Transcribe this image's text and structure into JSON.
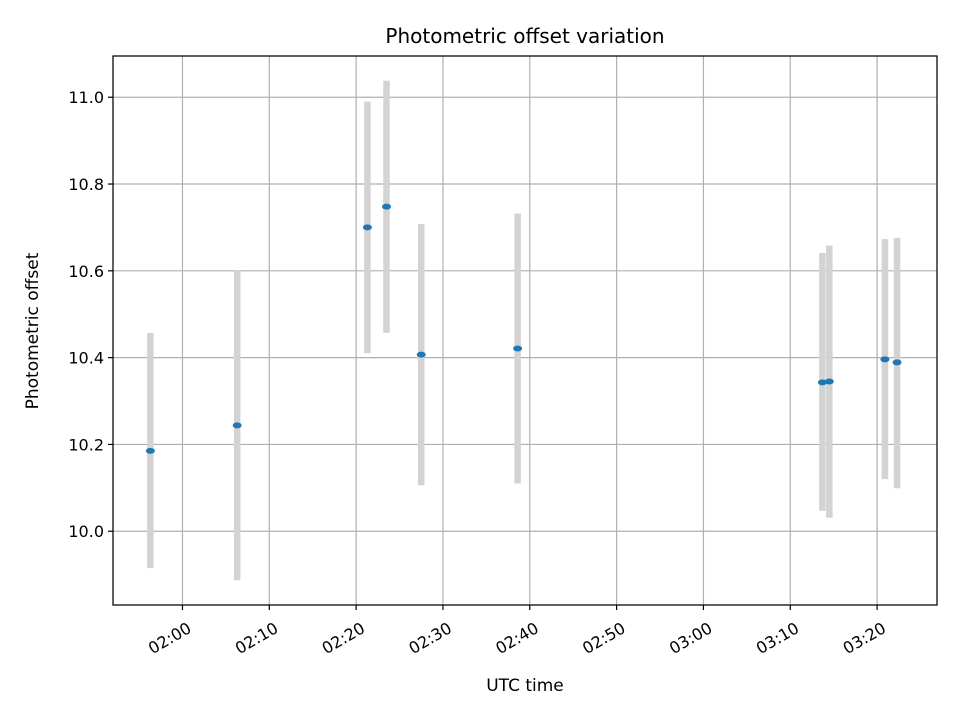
{
  "chart_data": {
    "type": "scatter",
    "title": "Photometric offset variation",
    "xlabel": "UTC time",
    "ylabel": "Photometric offset",
    "x_is_time": true,
    "xlim": [
      "01:52",
      "03:26.9"
    ],
    "ylim": [
      9.83,
      11.095
    ],
    "x_ticks": [
      "02:00",
      "02:10",
      "02:20",
      "02:30",
      "02:40",
      "02:50",
      "03:00",
      "03:10",
      "03:20"
    ],
    "y_ticks": [
      10.0,
      10.2,
      10.4,
      10.6,
      10.8,
      11.0
    ],
    "grid": true,
    "colors": {
      "marker": "#1f77b4",
      "error_bar": "#d3d3d3",
      "grid": "#b0b0b0"
    },
    "points": [
      {
        "time": "01:56.3",
        "value": 10.185,
        "low": 9.915,
        "high": 10.457
      },
      {
        "time": "02:06.3",
        "value": 10.244,
        "low": 9.887,
        "high": 10.601
      },
      {
        "time": "02:21.3",
        "value": 10.7,
        "low": 10.41,
        "high": 10.99
      },
      {
        "time": "02:23.5",
        "value": 10.748,
        "low": 10.457,
        "high": 11.038
      },
      {
        "time": "02:27.5",
        "value": 10.407,
        "low": 10.106,
        "high": 10.708
      },
      {
        "time": "02:38.6",
        "value": 10.421,
        "low": 10.11,
        "high": 10.732
      },
      {
        "time": "03:13.7",
        "value": 10.343,
        "low": 10.047,
        "high": 10.641
      },
      {
        "time": "03:14.5",
        "value": 10.345,
        "low": 10.031,
        "high": 10.658
      },
      {
        "time": "03:20.9",
        "value": 10.396,
        "low": 10.12,
        "high": 10.673
      },
      {
        "time": "03:22.3",
        "value": 10.389,
        "low": 10.099,
        "high": 10.676
      }
    ]
  }
}
